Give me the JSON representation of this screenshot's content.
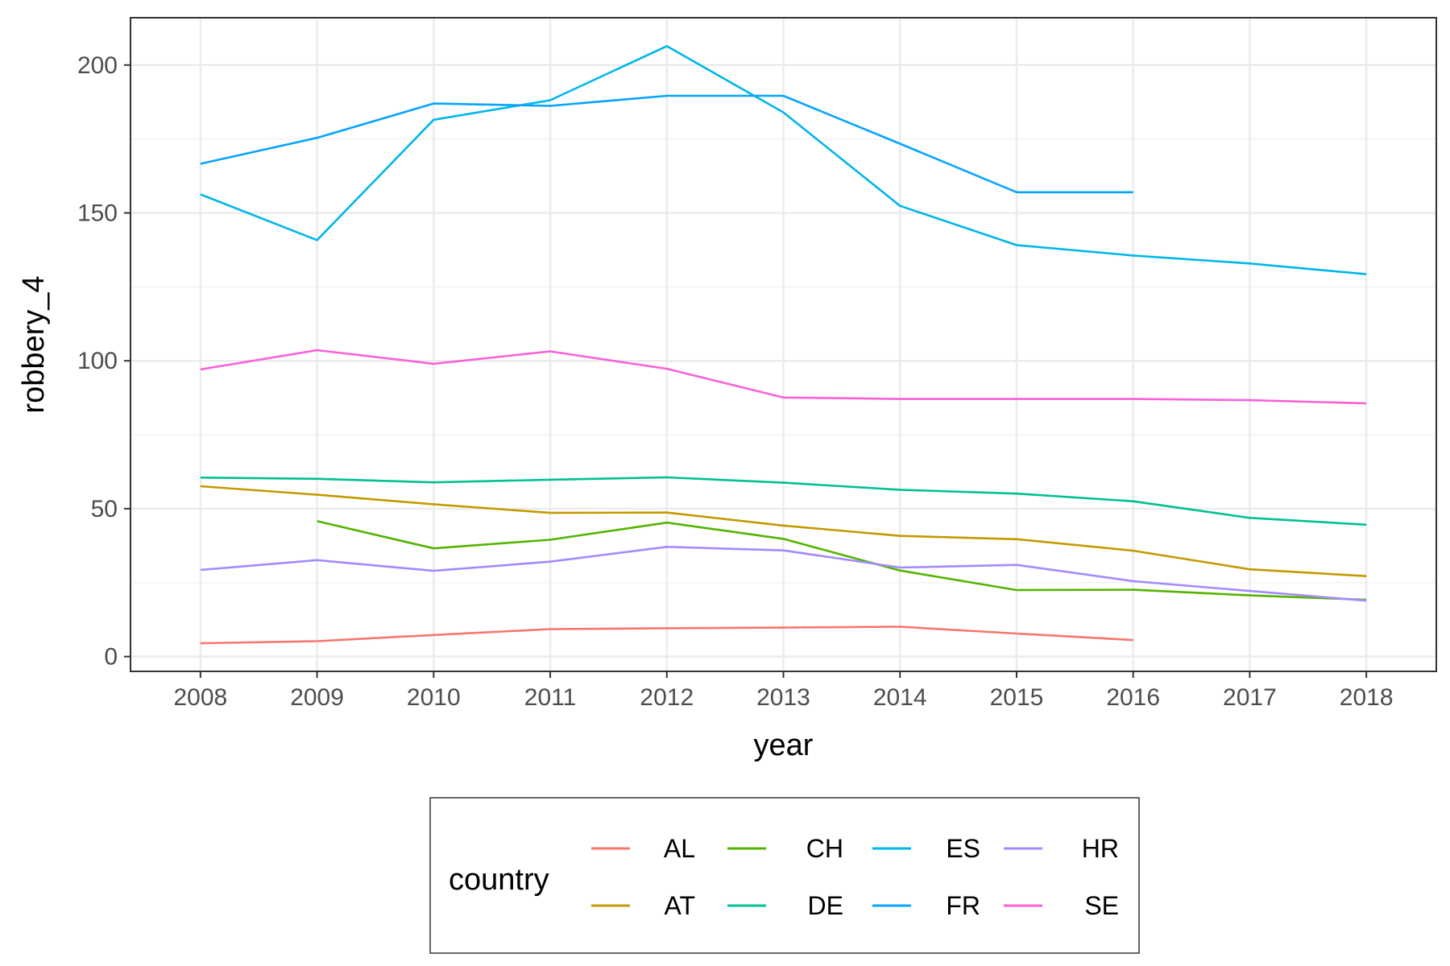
{
  "chart_data": {
    "type": "line",
    "xlabel": "year",
    "ylabel": "robbery_4",
    "x": [
      2008,
      2009,
      2010,
      2011,
      2012,
      2013,
      2014,
      2015,
      2016,
      2017,
      2018
    ],
    "xlim": [
      2007.4,
      2018.6
    ],
    "ylim": [
      -5,
      216
    ],
    "y_ticks": [
      0,
      50,
      100,
      150,
      200
    ],
    "y_minor_ticks": [
      25,
      75,
      125,
      175
    ],
    "grid": true,
    "legend": {
      "title": "country",
      "position": "bottom"
    },
    "series": [
      {
        "name": "AL",
        "color": "#F8766D",
        "x": [
          2008,
          2009,
          2010,
          2011,
          2012,
          2013,
          2014,
          2015,
          2016
        ],
        "values": [
          4.5,
          5.2,
          7.3,
          9.3,
          9.6,
          9.8,
          10.1,
          7.8,
          5.6
        ]
      },
      {
        "name": "AT",
        "color": "#C49A00",
        "x": [
          2008,
          2009,
          2010,
          2011,
          2012,
          2013,
          2014,
          2015,
          2016,
          2017,
          2018
        ],
        "values": [
          57.6,
          54.7,
          51.5,
          48.6,
          48.7,
          44.3,
          40.8,
          39.7,
          35.8,
          29.5,
          27.2
        ]
      },
      {
        "name": "CH",
        "color": "#53B400",
        "x": [
          2009,
          2010,
          2011,
          2012,
          2013,
          2014,
          2015,
          2016,
          2017,
          2018
        ],
        "values": [
          45.8,
          36.6,
          39.5,
          45.3,
          39.8,
          29.1,
          22.5,
          22.6,
          20.7,
          19.2
        ]
      },
      {
        "name": "DE",
        "color": "#00C094",
        "x": [
          2008,
          2009,
          2010,
          2011,
          2012,
          2013,
          2014,
          2015,
          2016,
          2017,
          2018
        ],
        "values": [
          60.5,
          60.1,
          58.9,
          59.8,
          60.6,
          58.8,
          56.4,
          55.1,
          52.5,
          46.9,
          44.6
        ]
      },
      {
        "name": "ES",
        "color": "#00B6EB",
        "x": [
          2008,
          2009,
          2010,
          2011,
          2012,
          2013,
          2014,
          2015,
          2016,
          2017,
          2018
        ],
        "values": [
          156.3,
          140.8,
          181.5,
          188.1,
          206.4,
          184.0,
          152.4,
          139.1,
          135.6,
          132.9,
          129.3
        ]
      },
      {
        "name": "FR",
        "color": "#06A4FF",
        "x": [
          2008,
          2009,
          2010,
          2011,
          2012,
          2013,
          2014,
          2015,
          2016
        ],
        "values": [
          166.6,
          175.4,
          187.0,
          186.2,
          189.6,
          189.6,
          173.4,
          157.0,
          157.0
        ]
      },
      {
        "name": "HR",
        "color": "#A58AFF",
        "x": [
          2008,
          2009,
          2010,
          2011,
          2012,
          2013,
          2014,
          2015,
          2016,
          2017,
          2018
        ],
        "values": [
          29.3,
          32.6,
          29.0,
          32.1,
          37.1,
          35.9,
          30.1,
          31.0,
          25.5,
          22.2,
          18.9
        ]
      },
      {
        "name": "SE",
        "color": "#FB61D7",
        "x": [
          2008,
          2009,
          2010,
          2011,
          2012,
          2013,
          2014,
          2015,
          2016,
          2017,
          2018
        ],
        "values": [
          97.1,
          103.6,
          99.0,
          103.2,
          97.3,
          87.6,
          87.1,
          87.1,
          87.1,
          86.7,
          85.6
        ]
      }
    ]
  }
}
